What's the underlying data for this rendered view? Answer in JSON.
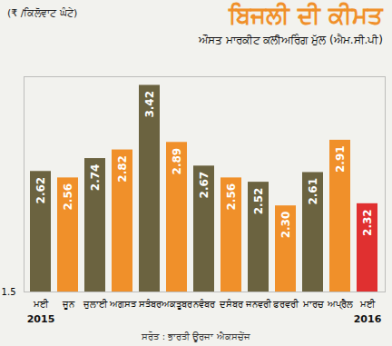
{
  "chart_data": {
    "type": "bar",
    "title": "ਬਿਜਲੀ ਦੀ ਕੀਮਤ",
    "subtitle": "ਔਸਤ ਮਾਰਕੀਟ ਕਲੀਅਰਿੰਗ ਮੁੱਲ (ਐਮ.ਸੀ.ਪੀ)",
    "y_label": "(₹ /ਕਿਲੋਵਾਟ ਘੰਟੇ)",
    "caption": "ਸਰੋਤ : ਭਾਰਤੀ ਊਰਜਾ ਐਕਸਚੇਂਜ",
    "categories": [
      "ਮਈ",
      "ਜੂਨ",
      "ਜੁਲਾਈ",
      "ਅਗਸਤ",
      "ਸਤੰਬਰ",
      "ਅਕਤੂਬਰ",
      "ਨਵੰਬਰ",
      "ਦਸੰਬਰ",
      "ਜਨਵਰੀ",
      "ਫਰਵਰੀ",
      "ਮਾਰਚ",
      "ਅਪ੍ਰੈਲ",
      "ਮਈ"
    ],
    "values": [
      2.62,
      2.56,
      2.74,
      2.82,
      3.42,
      2.89,
      2.67,
      2.56,
      2.52,
      2.3,
      2.61,
      2.91,
      2.32
    ],
    "value_labels": [
      "2.62",
      "2.56",
      "2.74",
      "2.82",
      "3.42",
      "2.89",
      "2.67",
      "2.56",
      "2.52",
      "2.30",
      "2.61",
      "2.91",
      "2.32"
    ],
    "colors": [
      "#6b6340",
      "#f0902a",
      "#6b6340",
      "#f0902a",
      "#6b6340",
      "#f0902a",
      "#6b6340",
      "#f0902a",
      "#6b6340",
      "#f0902a",
      "#6b6340",
      "#f0902a",
      "#e03030"
    ],
    "annotations": [
      {
        "text": "2015",
        "at": 0
      },
      {
        "text": "2016",
        "at": 12
      }
    ],
    "ylim": [
      1.5,
      3.5
    ],
    "yticks": [
      1.5
    ],
    "grid": false,
    "data_labels": true
  }
}
